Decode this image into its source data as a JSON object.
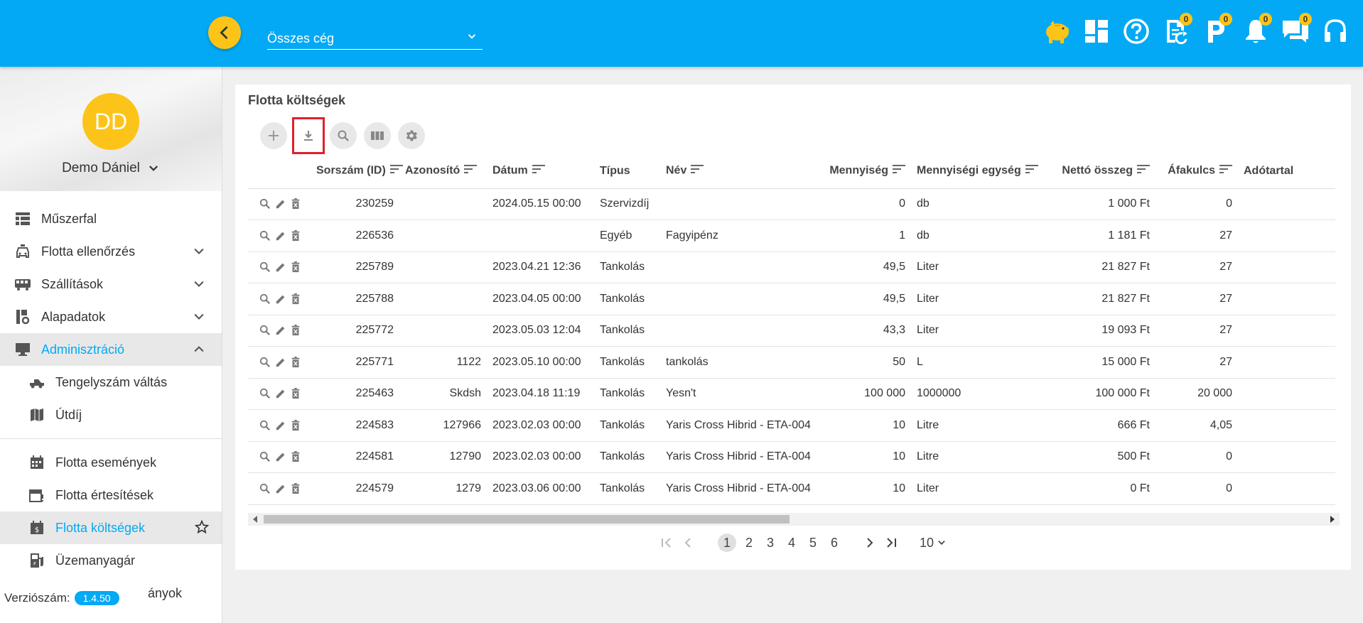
{
  "header": {
    "company_select": "Összes cég",
    "icons": [
      {
        "name": "piggy-bank-icon",
        "badge": ""
      },
      {
        "name": "dashboard-icon",
        "badge": ""
      },
      {
        "name": "help-icon",
        "badge": ""
      },
      {
        "name": "document-sync-icon",
        "badge": "0"
      },
      {
        "name": "parking-icon",
        "badge": "0"
      },
      {
        "name": "bell-icon",
        "badge": "0"
      },
      {
        "name": "chat-icon",
        "badge": "0"
      },
      {
        "name": "headset-icon",
        "badge": ""
      }
    ]
  },
  "user": {
    "initials": "DD",
    "name": "Demo Dániel"
  },
  "sidebar": {
    "items": [
      {
        "label": "Műszerfal"
      },
      {
        "label": "Flotta ellenőrzés"
      },
      {
        "label": "Szállítások"
      },
      {
        "label": "Alapadatok"
      },
      {
        "label": "Adminisztráció"
      },
      {
        "label": "Tengelyszám váltás"
      },
      {
        "label": "Útdíj"
      },
      {
        "label": "Flotta események"
      },
      {
        "label": "Flotta értesítések"
      },
      {
        "label": "Flotta költségek"
      },
      {
        "label": "Üzemanyagár"
      },
      {
        "label": "ányok"
      }
    ],
    "version_label": "Verziószám:",
    "version": "1.4.50"
  },
  "page": {
    "title": "Flotta költségek"
  },
  "table": {
    "columns": [
      "Sorszám (ID)",
      "Azonosító",
      "Dátum",
      "Típus",
      "Név",
      "Mennyiség",
      "Mennyiségi egység",
      "Nettó összeg",
      "Áfakulcs",
      "Adótartal"
    ],
    "rows": [
      [
        "230259",
        "",
        "2024.05.15 00:00",
        "Szervizdíj",
        "",
        "0",
        "db",
        "1 000 Ft",
        "0",
        ""
      ],
      [
        "226536",
        "",
        "",
        "Egyéb",
        "Fagyipénz",
        "1",
        "db",
        "1 181 Ft",
        "27",
        ""
      ],
      [
        "225789",
        "",
        "2023.04.21 12:36",
        "Tankolás",
        "",
        "49,5",
        "Liter",
        "21 827 Ft",
        "27",
        ""
      ],
      [
        "225788",
        "",
        "2023.04.05 00:00",
        "Tankolás",
        "",
        "49,5",
        "Liter",
        "21 827 Ft",
        "27",
        ""
      ],
      [
        "225772",
        "",
        "2023.05.03 12:04",
        "Tankolás",
        "",
        "43,3",
        "Liter",
        "19 093 Ft",
        "27",
        ""
      ],
      [
        "225771",
        "1122",
        "2023.05.10 00:00",
        "Tankolás",
        "tankolás",
        "50",
        "L",
        "15 000 Ft",
        "27",
        ""
      ],
      [
        "225463",
        "Skdsh",
        "2023.04.18 11:19",
        "Tankolás",
        "Yesn't",
        "100 000",
        "1000000",
        "100 000 Ft",
        "20 000",
        ""
      ],
      [
        "224583",
        "127966",
        "2023.02.03 00:00",
        "Tankolás",
        "Yaris Cross Hibrid - ETA-004",
        "10",
        "Litre",
        "666 Ft",
        "4,05",
        ""
      ],
      [
        "224581",
        "12790",
        "2023.02.03 00:00",
        "Tankolás",
        "Yaris Cross Hibrid - ETA-004",
        "10",
        "Litre",
        "500 Ft",
        "0",
        ""
      ],
      [
        "224579",
        "1279",
        "2023.03.06 00:00",
        "Tankolás",
        "Yaris Cross Hibrid - ETA-004",
        "10",
        "Liter",
        "0 Ft",
        "0",
        ""
      ]
    ]
  },
  "pagination": {
    "pages": [
      "1",
      "2",
      "3",
      "4",
      "5",
      "6"
    ],
    "current": "1",
    "page_size": "10"
  },
  "colors": {
    "primary": "#03a9f4",
    "accent": "#fcc419",
    "highlight": "#e0202a"
  }
}
